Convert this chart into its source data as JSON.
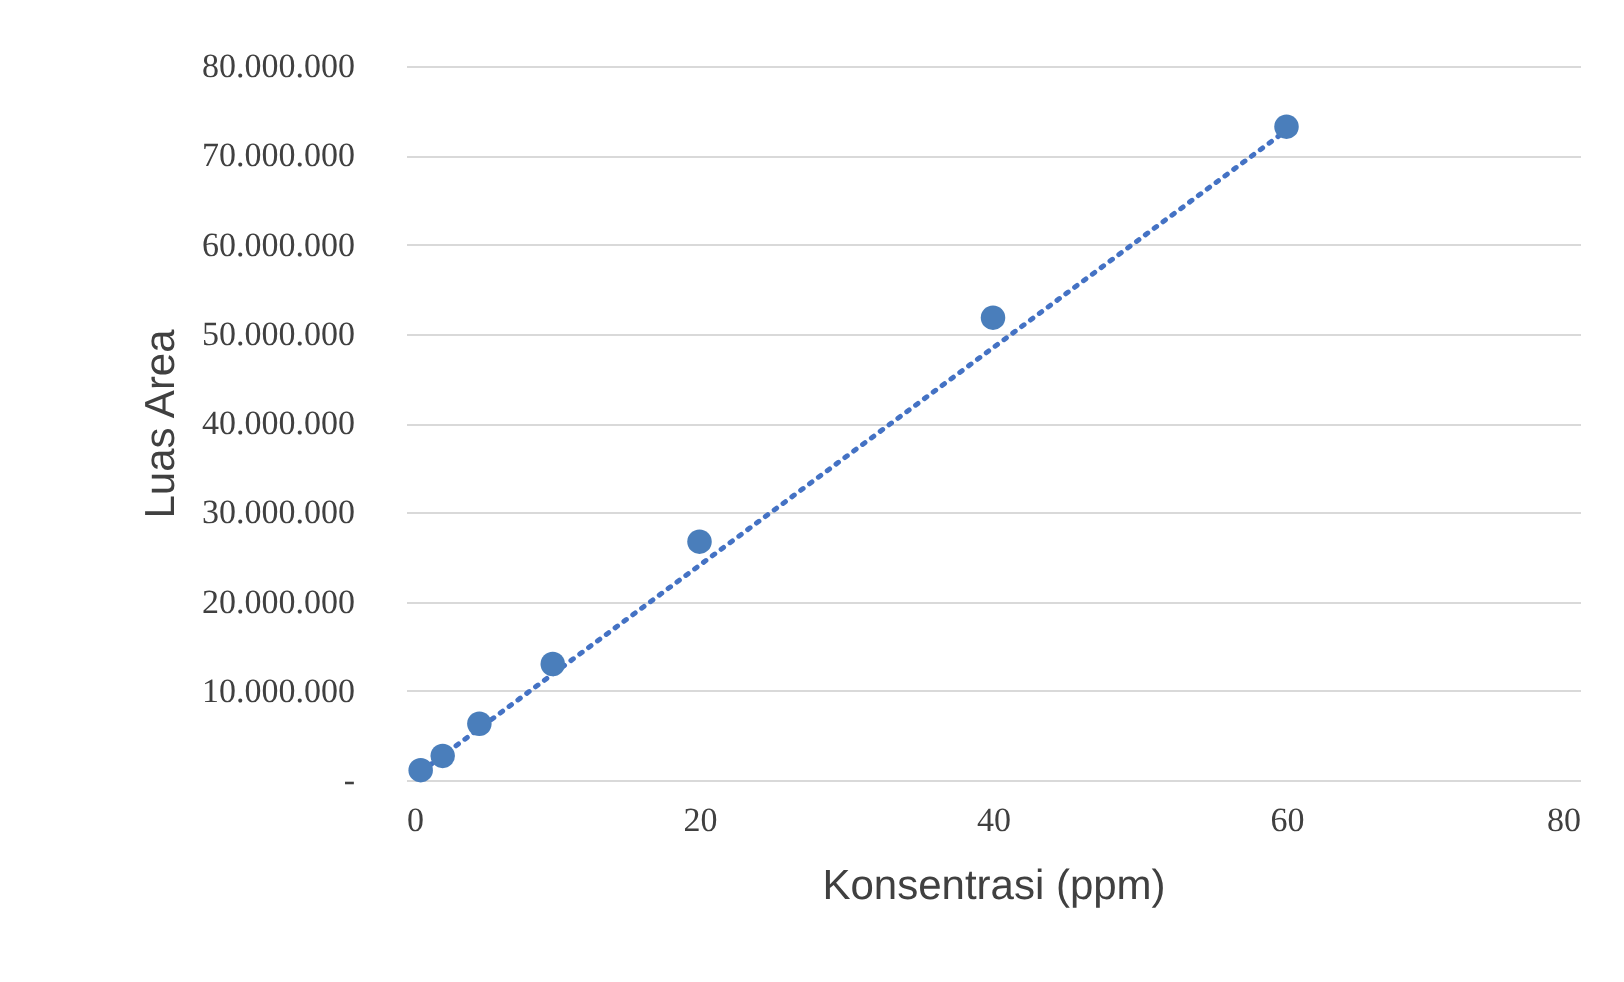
{
  "chart_data": {
    "type": "scatter",
    "xlabel": "Konsentrasi (ppm)",
    "ylabel": "Luas Area",
    "x": [
      1,
      2.5,
      5,
      10,
      20,
      40,
      60
    ],
    "series": [
      {
        "color": "#4a7ebb",
        "marker": "circle",
        "values": [
          1100000,
          2700000,
          6300000,
          13000000,
          26700000,
          51800000,
          73200000
        ]
      },
      {
        "type": "line",
        "color": "#4472c4",
        "line_style": "dotted",
        "x": [
          1,
          60
        ],
        "values": [
          900000,
          72800000
        ]
      }
    ],
    "xlim": [
      0,
      80
    ],
    "xticks": [
      0,
      20,
      40,
      60,
      80
    ],
    "ylim": [
      0,
      80000000
    ],
    "yticks": [
      {
        "value": 0,
        "label": "-"
      },
      {
        "value": 10000000,
        "label": "10.000.000"
      },
      {
        "value": 20000000,
        "label": "20.000.000"
      },
      {
        "value": 30000000,
        "label": "30.000.000"
      },
      {
        "value": 40000000,
        "label": "40.000.000"
      },
      {
        "value": 50000000,
        "label": "50.000.000"
      },
      {
        "value": 60000000,
        "label": "60.000.000"
      },
      {
        "value": 70000000,
        "label": "70.000.000"
      },
      {
        "value": 80000000,
        "label": "80.000.000"
      }
    ],
    "grid": "y"
  }
}
